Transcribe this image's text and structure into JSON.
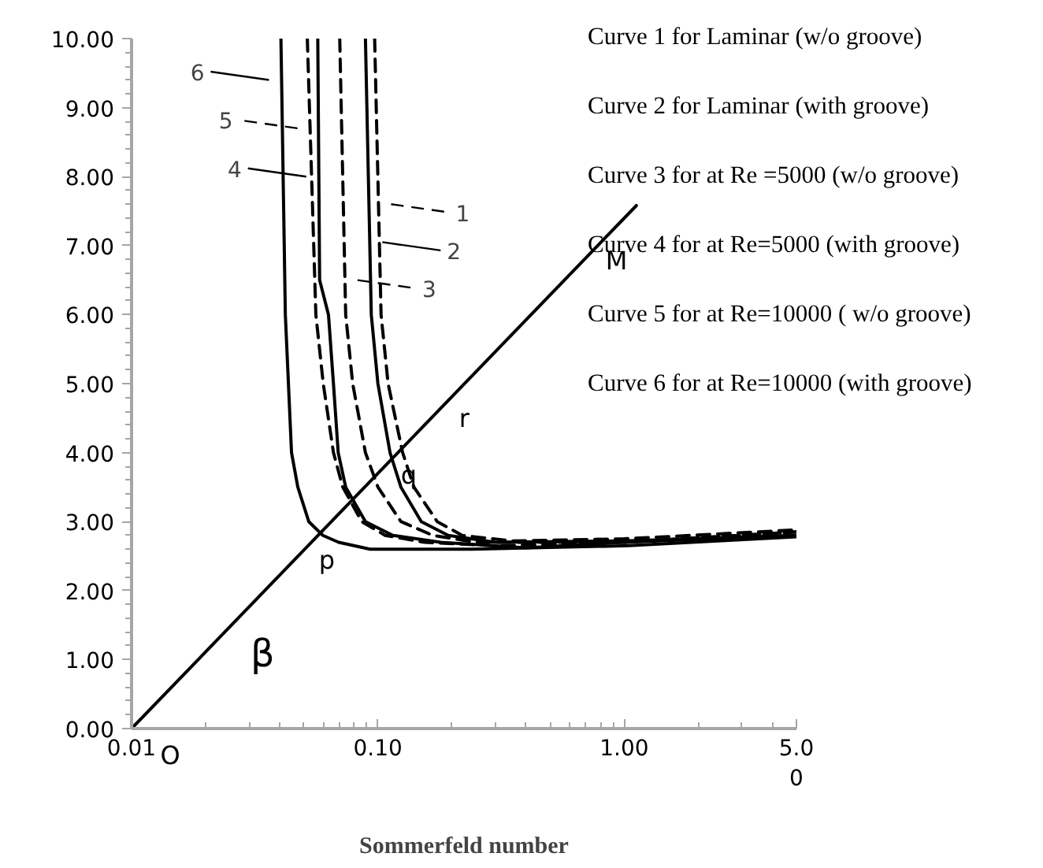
{
  "chart_data": {
    "type": "line",
    "xlabel": "Sommerfeld number",
    "log": "x",
    "legend": "top",
    "grid": false,
    "marker": "none",
    "xlim": [
      0.01,
      5.0
    ],
    "xticks": [
      {
        "value": 0.01,
        "label": "0.01"
      },
      {
        "value": 0.1,
        "label": "0.10"
      },
      {
        "value": 1.0,
        "label": "1.00"
      },
      {
        "value": 5.0,
        "label": "5.0\n0"
      }
    ],
    "ylim": [
      0,
      10
    ],
    "yticks": [
      {
        "value": 0,
        "label": "0.00"
      },
      {
        "value": 1,
        "label": "1.00"
      },
      {
        "value": 2,
        "label": "2.00"
      },
      {
        "value": 3,
        "label": "3.00"
      },
      {
        "value": 4,
        "label": "4.00"
      },
      {
        "value": 5,
        "label": "5.00"
      },
      {
        "value": 6,
        "label": "6.00"
      },
      {
        "value": 7,
        "label": "7.00"
      },
      {
        "value": 8,
        "label": "8.00"
      },
      {
        "value": 9,
        "label": "9.00"
      },
      {
        "value": 10,
        "label": "10.00"
      }
    ],
    "series": [
      {
        "name": "1",
        "color": "#000000",
        "line_style": "dashed",
        "x": [
          0.097,
          0.103,
          0.11,
          0.126,
          0.14,
          0.174,
          0.22,
          0.35,
          1.0,
          5.0
        ],
        "values": [
          10,
          6,
          5,
          4,
          3.5,
          3,
          2.8,
          2.72,
          2.75,
          2.88
        ]
      },
      {
        "name": "2",
        "color": "#000000",
        "line_style": "solid",
        "x": [
          0.089,
          0.094,
          0.1,
          0.112,
          0.124,
          0.15,
          0.193,
          0.3,
          1.0,
          5.0
        ],
        "values": [
          10,
          6,
          5,
          4,
          3.5,
          3,
          2.8,
          2.7,
          2.72,
          2.8
        ]
      },
      {
        "name": "3",
        "color": "#000000",
        "line_style": "dashed",
        "x": [
          0.07,
          0.074,
          0.079,
          0.089,
          0.1,
          0.124,
          0.167,
          0.25,
          1.0,
          5.0
        ],
        "values": [
          10,
          6,
          5,
          4,
          3.5,
          3,
          2.8,
          2.7,
          2.7,
          2.85
        ]
      },
      {
        "name": "4",
        "color": "#000000",
        "line_style": "solid",
        "x": [
          0.057,
          0.058,
          0.063,
          0.066,
          0.069,
          0.074,
          0.089,
          0.115,
          0.18,
          0.4,
          1.0,
          5.0
        ],
        "values": [
          10,
          6.5,
          6,
          5,
          4,
          3.5,
          3,
          2.8,
          2.7,
          2.62,
          2.7,
          2.8
        ]
      },
      {
        "name": "5",
        "color": "#000000",
        "line_style": "dashed",
        "x": [
          0.0517,
          0.056,
          0.06,
          0.066,
          0.072,
          0.086,
          0.107,
          0.155,
          0.3,
          1.0,
          5.0
        ],
        "values": [
          10,
          6,
          5,
          4,
          3.5,
          3,
          2.8,
          2.7,
          2.65,
          2.7,
          2.85
        ]
      },
      {
        "name": "6",
        "color": "#000000",
        "line_style": "solid",
        "x": [
          0.0404,
          0.0421,
          0.0446,
          0.0473,
          0.0524,
          0.0598,
          0.0693,
          0.093,
          0.24,
          1.04,
          5.0
        ],
        "values": [
          10,
          6,
          4,
          3.5,
          3,
          2.8,
          2.7,
          2.6,
          2.6,
          2.65,
          2.78
        ]
      },
      {
        "color": "#000000",
        "line_style": "solid",
        "x": [
          0.01,
          1.12
        ],
        "values": [
          0,
          7.58
        ]
      }
    ],
    "annotations": [
      "Curve 1 for Laminar (w/o groove)",
      "Curve 2 for Laminar (with groove)",
      "Curve 3 for at Re =5000 (w/o groove)",
      "Curve 4 for  at Re=5000 (with  groove)",
      "Curve 5 for  at Re=10000 ( w/o groove)",
      "Curve 6 for at Re=10000 (with groove)",
      {
        "text": "O",
        "x": 0.01,
        "y": 0
      },
      {
        "text": "p",
        "x": 0.058,
        "y": 2.83
      },
      {
        "text": "q",
        "x": 0.125,
        "y": 4.06
      },
      {
        "text": "r",
        "x": 0.21,
        "y": 4.89
      },
      {
        "text": "M",
        "x": 0.87,
        "y": 7.18
      },
      {
        "text": "β",
        "x": 0.0267,
        "y": 1.58
      }
    ]
  }
}
